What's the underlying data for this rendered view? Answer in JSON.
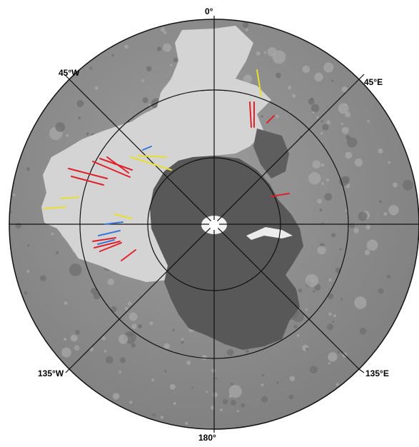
{
  "map": {
    "projection": "polar stereographic",
    "colors": {
      "terrain": "#8e8e8e",
      "terrain_dark": "#6d6d6d",
      "light_unit": "#d4d4d4",
      "dark_unit": "#555555",
      "ice_cap": "#f2f2f2",
      "grid": "#111111",
      "red_lines": "#e0202a",
      "yellow_lines": "#e8e030",
      "blue_lines": "#3a78d8"
    },
    "labels": {
      "top": "0°",
      "bottom": "180°",
      "upper_left": "45°W",
      "upper_right": "45°E",
      "lower_left": "135°W",
      "lower_right": "135°E"
    }
  }
}
